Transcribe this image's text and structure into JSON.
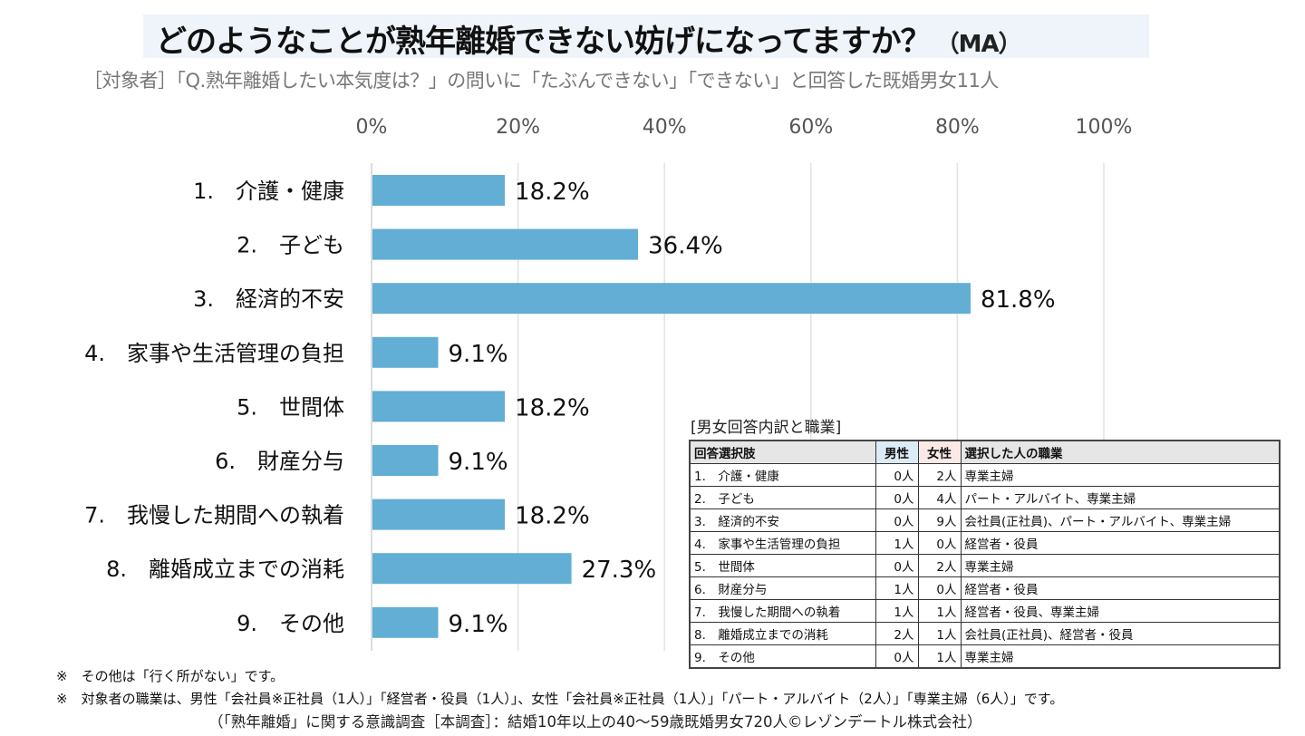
{
  "header": {
    "title": "どのようなことが熟年離婚できない妨げになってますか？",
    "title_suffix": "（MA）",
    "subtitle": "［対象者］「Q.熟年離婚したい本気度は？」の問いに「たぶんできない」「できない」と回答した既婚男女11人"
  },
  "chart_data": {
    "type": "bar",
    "orientation": "horizontal",
    "title": "どのようなことが熟年離婚できない妨げになってますか？（MA）",
    "xlabel": "",
    "ylabel": "",
    "xlim": [
      0,
      100
    ],
    "x_ticks": [
      "0%",
      "20%",
      "40%",
      "60%",
      "80%",
      "100%"
    ],
    "x_tick_values": [
      0,
      20,
      40,
      60,
      80,
      100
    ],
    "grid": true,
    "bar_color": "#62aed4",
    "categories": [
      "1.　介護・健康",
      "2.　子ども",
      "3.　経済的不安",
      "4.　家事や生活管理の負担",
      "5.　世間体",
      "6.　財産分与",
      "7.　我慢した期間への執着",
      "8.　離婚成立までの消耗",
      "9.　その他"
    ],
    "values": [
      18.2,
      36.4,
      81.8,
      9.1,
      18.2,
      9.1,
      18.2,
      27.3,
      9.1
    ],
    "value_labels": [
      "18.2%",
      "36.4%",
      "81.8%",
      "9.1%",
      "18.2%",
      "9.1%",
      "18.2%",
      "27.3%",
      "9.1%"
    ]
  },
  "table": {
    "caption": "[男女回答内訳と職業]",
    "headers": {
      "choice": "回答選択肢",
      "male": "男性",
      "female": "女性",
      "occupation": "選択した人の職業"
    },
    "header_colors": {
      "male": "#dcecf7",
      "female": "#fbe9e7"
    },
    "rows": [
      {
        "choice": "1.　介護・健康",
        "male": "0人",
        "female": "2人",
        "occupation": "専業主婦"
      },
      {
        "choice": "2.　子ども",
        "male": "0人",
        "female": "4人",
        "occupation": "パート・アルバイト、専業主婦"
      },
      {
        "choice": "3.　経済的不安",
        "male": "0人",
        "female": "9人",
        "occupation": "会社員(正社員)、パート・アルバイト、専業主婦"
      },
      {
        "choice": "4.　家事や生活管理の負担",
        "male": "1人",
        "female": "0人",
        "occupation": "経営者・役員"
      },
      {
        "choice": "5.　世間体",
        "male": "0人",
        "female": "2人",
        "occupation": "専業主婦"
      },
      {
        "choice": "6.　財産分与",
        "male": "1人",
        "female": "0人",
        "occupation": "経営者・役員"
      },
      {
        "choice": "7.　我慢した期間への執着",
        "male": "1人",
        "female": "1人",
        "occupation": "経営者・役員、専業主婦"
      },
      {
        "choice": "8.　離婚成立までの消耗",
        "male": "2人",
        "female": "1人",
        "occupation": "会社員(正社員)、経営者・役員"
      },
      {
        "choice": "9.　その他",
        "male": "0人",
        "female": "1人",
        "occupation": "専業主婦"
      }
    ]
  },
  "notes": [
    "※　その他は「行く所がない」です。",
    "※　対象者の職業は、男性「会社員※正社員（1人）」「経営者・役員（1人）」、女性「会社員※正社員（1人）」「パート・アルバイト（2人）」「専業主婦（6人）」です。"
  ],
  "source": "（「熟年離婚」に関する意識調査［本調査］：結婚10年以上の40～59歳既婚男女720人©レゾンデートル株式会社）"
}
